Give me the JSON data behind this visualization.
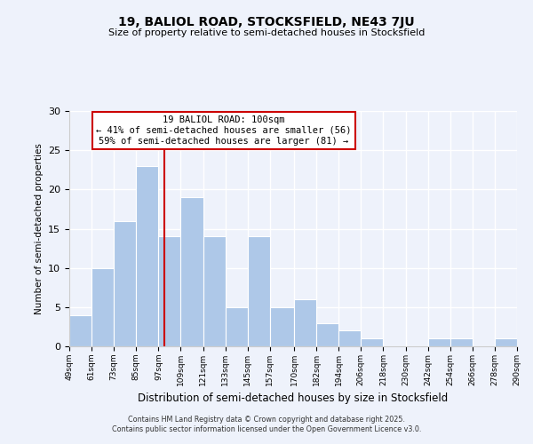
{
  "title1": "19, BALIOL ROAD, STOCKSFIELD, NE43 7JU",
  "title2": "Size of property relative to semi-detached houses in Stocksfield",
  "xlabel": "Distribution of semi-detached houses by size in Stocksfield",
  "ylabel": "Number of semi-detached properties",
  "bin_labels": [
    "49sqm",
    "61sqm",
    "73sqm",
    "85sqm",
    "97sqm",
    "109sqm",
    "121sqm",
    "133sqm",
    "145sqm",
    "157sqm",
    "170sqm",
    "182sqm",
    "194sqm",
    "206sqm",
    "218sqm",
    "230sqm",
    "242sqm",
    "254sqm",
    "266sqm",
    "278sqm",
    "290sqm"
  ],
  "bin_edges": [
    49,
    61,
    73,
    85,
    97,
    109,
    121,
    133,
    145,
    157,
    170,
    182,
    194,
    206,
    218,
    230,
    242,
    254,
    266,
    278,
    290
  ],
  "counts": [
    4,
    10,
    16,
    23,
    14,
    19,
    14,
    5,
    14,
    5,
    6,
    3,
    2,
    1,
    0,
    0,
    1,
    1,
    0,
    1
  ],
  "bar_color": "#aec8e8",
  "bar_edge_color": "#ffffff",
  "vline_x": 100,
  "vline_color": "#cc0000",
  "annotation_title": "19 BALIOL ROAD: 100sqm",
  "annotation_line1": "← 41% of semi-detached houses are smaller (56)",
  "annotation_line2": "59% of semi-detached houses are larger (81) →",
  "annotation_box_color": "#ffffff",
  "annotation_box_edge": "#cc0000",
  "ylim": [
    0,
    30
  ],
  "footer1": "Contains HM Land Registry data © Crown copyright and database right 2025.",
  "footer2": "Contains public sector information licensed under the Open Government Licence v3.0.",
  "bg_color": "#eef2fb",
  "grid_color": "#ffffff"
}
